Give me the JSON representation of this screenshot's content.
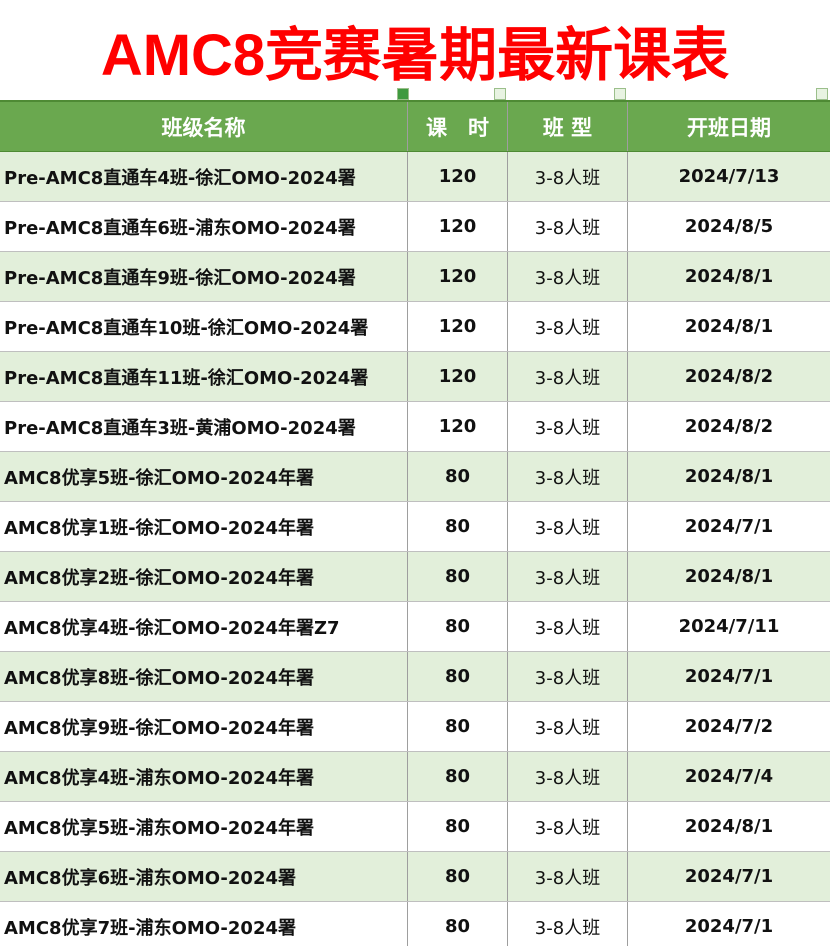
{
  "header": {
    "title": "AMC8竞赛暑期最新课表"
  },
  "table": {
    "columns": [
      "班级名称",
      "课　时",
      "班 型",
      "开班日期"
    ],
    "rows": [
      [
        "Pre-AMC8直通车4班-徐汇OMO-2024署",
        120,
        "3-8人班",
        "2024/7/13"
      ],
      [
        "Pre-AMC8直通车6班-浦东OMO-2024署",
        120,
        "3-8人班",
        "2024/8/5"
      ],
      [
        "Pre-AMC8直通车9班-徐汇OMO-2024署",
        120,
        "3-8人班",
        "2024/8/1"
      ],
      [
        "Pre-AMC8直通车10班-徐汇OMO-2024署",
        120,
        "3-8人班",
        "2024/8/1"
      ],
      [
        "Pre-AMC8直通车11班-徐汇OMO-2024署",
        120,
        "3-8人班",
        "2024/8/2"
      ],
      [
        "Pre-AMC8直通车3班-黄浦OMO-2024署",
        120,
        "3-8人班",
        "2024/8/2"
      ],
      [
        "AMC8优享5班-徐汇OMO-2024年署",
        80,
        "3-8人班",
        "2024/8/1"
      ],
      [
        "AMC8优享1班-徐汇OMO-2024年署",
        80,
        "3-8人班",
        "2024/7/1"
      ],
      [
        "AMC8优享2班-徐汇OMO-2024年署",
        80,
        "3-8人班",
        "2024/8/1"
      ],
      [
        "AMC8优享4班-徐汇OMO-2024年署Z7",
        80,
        "3-8人班",
        "2024/7/11"
      ],
      [
        "AMC8优享8班-徐汇OMO-2024年署",
        80,
        "3-8人班",
        "2024/7/1"
      ],
      [
        "AMC8优享9班-徐汇OMO-2024年署",
        80,
        "3-8人班",
        "2024/7/2"
      ],
      [
        "AMC8优享4班-浦东OMO-2024年署",
        80,
        "3-8人班",
        "2024/7/4"
      ],
      [
        "AMC8优享5班-浦东OMO-2024年署",
        80,
        "3-8人班",
        "2024/8/1"
      ],
      [
        "AMC8优享6班-浦东OMO-2024署",
        80,
        "3-8人班",
        "2024/7/1"
      ],
      [
        "AMC8优享7班-浦东OMO-2024署",
        80,
        "3-8人班",
        "2024/7/1"
      ]
    ]
  }
}
